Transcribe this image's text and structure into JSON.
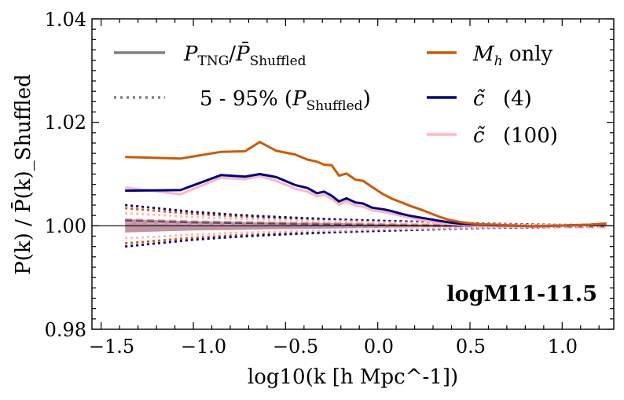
{
  "chart_data": {
    "type": "line",
    "title": "",
    "xlabel": "log10(k [h Mpc^-1])",
    "ylabel": "P(k) / P̄(k)_Shuffled",
    "xlim": [
      -1.55,
      1.28
    ],
    "ylim": [
      0.98,
      1.04
    ],
    "xticks": [
      -1.5,
      -1.0,
      -0.5,
      0.0,
      0.5,
      1.0
    ],
    "xtick_labels": [
      "−1.5",
      "−1.0",
      "−0.5",
      "0.0",
      "0.5",
      "1.0"
    ],
    "yticks": [
      0.98,
      1.0,
      1.02,
      1.04
    ],
    "ytick_labels": [
      "0.98",
      "1.00",
      "1.02",
      "1.04"
    ],
    "reference_line": 1.0,
    "annotation": "logM11-11.5",
    "legend": {
      "style_solid": {
        "main": "P",
        "sub": "TNG",
        "sep": "/",
        "main2": "P̄",
        "sub2": "Shuffled"
      },
      "style_dotted": {
        "prefix": "5 - 95% (",
        "main": "P",
        "sub": "Shuffled",
        "suffix": ")"
      },
      "mh": {
        "main": "M",
        "sub": "h",
        "rest": " only"
      },
      "c4": {
        "main": "c̃",
        "rest": "(4)"
      },
      "c100": {
        "main": "c̃",
        "rest": "(100)"
      }
    },
    "colors": {
      "mh": "#cc5a00",
      "c4": "#000080",
      "c100": "#ffb6c1",
      "legend_style": "#808080",
      "band_fill": "#b07a8c"
    },
    "series": [
      {
        "name": "M_h only",
        "color_key": "mh",
        "x": [
          -1.37,
          -1.07,
          -0.85,
          -0.72,
          -0.64,
          -0.55,
          -0.45,
          -0.38,
          -0.33,
          -0.29,
          -0.25,
          -0.21,
          -0.17,
          -0.12,
          -0.08,
          -0.03,
          0.03,
          0.08,
          0.13,
          0.18,
          0.23,
          0.28,
          0.33,
          0.38,
          0.45,
          0.55,
          0.65,
          0.75,
          0.85,
          0.95,
          1.05,
          1.15,
          1.24
        ],
        "y": [
          1.0133,
          1.013,
          1.0143,
          1.0144,
          1.0162,
          1.0145,
          1.0138,
          1.0128,
          1.0124,
          1.0118,
          1.0117,
          1.0097,
          1.0101,
          1.0089,
          1.0087,
          1.0075,
          1.0061,
          1.0052,
          1.0045,
          1.0038,
          1.0032,
          1.0025,
          1.0018,
          1.0012,
          1.0007,
          1.0003,
          1.0002,
          1.0,
          0.9999,
          1.0,
          1.0001,
          1.0002,
          1.0004
        ]
      },
      {
        "name": "c̃ (4)",
        "color_key": "c4",
        "x": [
          -1.37,
          -1.07,
          -0.85,
          -0.72,
          -0.64,
          -0.55,
          -0.45,
          -0.38,
          -0.33,
          -0.29,
          -0.25,
          -0.21,
          -0.17,
          -0.12,
          -0.08,
          -0.03,
          0.03,
          0.08,
          0.13,
          0.18,
          0.23,
          0.28,
          0.33,
          0.38,
          0.45,
          0.55,
          0.65,
          0.75,
          0.85,
          0.95,
          1.05,
          1.15,
          1.24
        ],
        "y": [
          1.0068,
          1.0069,
          1.0098,
          1.0095,
          1.01,
          1.0094,
          1.0079,
          1.0073,
          1.0063,
          1.0066,
          1.0058,
          1.0047,
          1.0053,
          1.0045,
          1.0043,
          1.0035,
          1.0032,
          1.0028,
          1.0023,
          1.0019,
          1.0016,
          1.0013,
          1.001,
          1.0007,
          1.0004,
          1.0002,
          1.0001,
          1.0,
          0.9999,
          1.0,
          1.0001,
          1.0002,
          1.0004
        ]
      },
      {
        "name": "c̃ (100)",
        "color_key": "c100",
        "x": [
          -1.37,
          -1.07,
          -0.85,
          -0.72,
          -0.64,
          -0.55,
          -0.45,
          -0.38,
          -0.33,
          -0.29,
          -0.25,
          -0.21,
          -0.17,
          -0.12,
          -0.08,
          -0.03,
          0.03,
          0.08,
          0.13,
          0.18,
          0.23,
          0.28,
          0.33,
          0.38,
          0.45,
          0.55,
          0.65,
          0.75,
          0.85,
          0.95,
          1.05,
          1.15,
          1.24
        ],
        "y": [
          1.0074,
          1.0061,
          1.0093,
          1.009,
          1.0096,
          1.0087,
          1.0072,
          1.0066,
          1.0057,
          1.006,
          1.0052,
          1.0041,
          1.0047,
          1.0039,
          1.0037,
          1.003,
          1.0027,
          1.0023,
          1.0019,
          1.0015,
          1.0012,
          1.0009,
          1.0006,
          1.0004,
          1.0002,
          1.0,
          0.9999,
          0.9999,
          0.9999,
          1.0,
          1.0001,
          1.0002,
          1.0005
        ]
      }
    ],
    "band": {
      "x": [
        -1.37,
        -1.2,
        -1.0,
        -0.8,
        -0.6,
        -0.4,
        -0.2,
        0.0,
        0.2,
        0.4,
        0.6,
        0.8,
        1.0,
        1.24
      ],
      "lower": [
        0.9987,
        0.9989,
        0.9991,
        0.9992,
        0.9993,
        0.9994,
        0.9995,
        0.9996,
        0.9997,
        0.99975,
        0.9998,
        0.99985,
        0.9999,
        0.9999
      ],
      "upper": [
        1.0013,
        1.0011,
        1.0009,
        1.0008,
        1.0007,
        1.0006,
        1.0005,
        1.0004,
        1.0003,
        1.00025,
        1.0002,
        1.00015,
        1.0001,
        1.0001
      ]
    },
    "dotted_envelopes": [
      {
        "name": "M_h only 5-95%",
        "color_key": "mh",
        "x": [
          -1.37,
          -1.2,
          -1.0,
          -0.8,
          -0.6,
          -0.4,
          -0.2,
          0.0,
          0.2,
          0.4,
          0.6,
          0.8,
          1.0,
          1.24
        ],
        "lower": [
          0.9966,
          0.9971,
          0.9977,
          0.9981,
          0.9984,
          0.9987,
          0.9989,
          0.9991,
          0.9993,
          0.9995,
          0.9997,
          0.9998,
          0.9998,
          0.9999
        ],
        "upper": [
          1.0034,
          1.0029,
          1.0023,
          1.0019,
          1.0016,
          1.0013,
          1.0011,
          1.0009,
          1.0007,
          1.0005,
          1.0003,
          1.0002,
          1.0002,
          1.0001
        ]
      },
      {
        "name": "c̃ (4) 5-95%",
        "color_key": "c4",
        "x": [
          -1.37,
          -1.2,
          -1.0,
          -0.8,
          -0.6,
          -0.4,
          -0.2,
          0.0,
          0.2,
          0.4,
          0.6,
          0.8,
          1.0,
          1.24
        ],
        "lower": [
          0.996,
          0.9966,
          0.9973,
          0.9978,
          0.9982,
          0.9985,
          0.9988,
          0.999,
          0.9992,
          0.9994,
          0.9996,
          0.9997,
          0.9998,
          0.9999
        ],
        "upper": [
          1.004,
          1.0034,
          1.0027,
          1.0022,
          1.0018,
          1.0015,
          1.0012,
          1.001,
          1.0008,
          1.0006,
          1.0004,
          1.0003,
          1.0002,
          1.0001
        ]
      },
      {
        "name": "c̃ (100) 5-95%",
        "color_key": "c100",
        "x": [
          -1.37,
          -1.2,
          -1.0,
          -0.8,
          -0.6,
          -0.4,
          -0.2,
          0.0,
          0.2,
          0.4,
          0.6,
          0.8,
          1.0,
          1.24
        ],
        "lower": [
          0.9976,
          0.9979,
          0.9983,
          0.9986,
          0.9988,
          0.999,
          0.9991,
          0.9993,
          0.9994,
          0.9995,
          0.9997,
          0.9998,
          0.9998,
          0.9999
        ],
        "upper": [
          1.0024,
          1.0021,
          1.0017,
          1.0014,
          1.0012,
          1.001,
          1.0009,
          1.0007,
          1.0006,
          1.0005,
          1.0003,
          1.0002,
          1.0002,
          1.0001
        ]
      }
    ]
  }
}
